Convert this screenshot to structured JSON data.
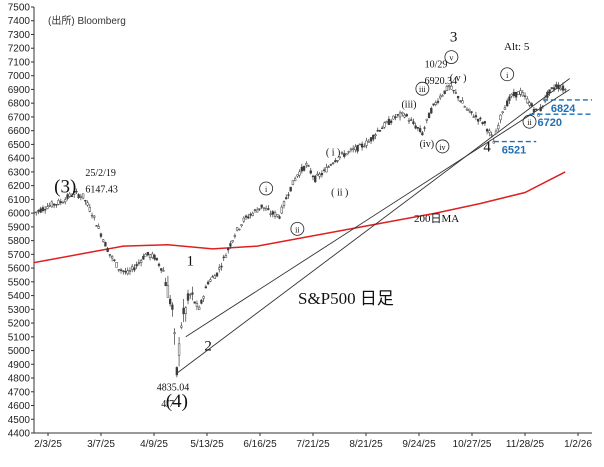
{
  "source_label": "(出所) Bloomberg",
  "title": "S&P500 日足",
  "alt_label": "Alt: 5",
  "ma_label": "200日MA",
  "colors": {
    "candle": "#3a3a3a",
    "ma": "#e02020",
    "trendline": "#333333",
    "support": "#1f6fb5",
    "support_text": "#1f6fb5"
  },
  "chart_data": {
    "type": "candlestick",
    "ylim": [
      4400,
      7500
    ],
    "y_ticks": [
      4400,
      4500,
      4600,
      4700,
      4800,
      4900,
      5000,
      5100,
      5200,
      5300,
      5400,
      5500,
      5600,
      5700,
      5800,
      5900,
      6000,
      6100,
      6200,
      6300,
      6400,
      6500,
      6600,
      6700,
      6800,
      6900,
      7000,
      7100,
      7200,
      7300,
      7400,
      7500
    ],
    "x_tick_labels": [
      "2/3/25",
      "3/7/25",
      "4/9/25",
      "5/13/25",
      "6/16/25",
      "7/21/25",
      "8/21/25",
      "9/24/25",
      "10/27/25",
      "11/28/25",
      "1/2/26"
    ],
    "price_path": [
      [
        0,
        6000
      ],
      [
        6,
        6050
      ],
      [
        12,
        6080
      ],
      [
        18,
        6147
      ],
      [
        22,
        6120
      ],
      [
        26,
        6000
      ],
      [
        30,
        5850
      ],
      [
        34,
        5700
      ],
      [
        38,
        5600
      ],
      [
        42,
        5560
      ],
      [
        46,
        5620
      ],
      [
        50,
        5700
      ],
      [
        54,
        5680
      ],
      [
        58,
        5580
      ],
      [
        62,
        5300
      ],
      [
        64,
        4835
      ],
      [
        66,
        5200
      ],
      [
        70,
        5400
      ],
      [
        74,
        5300
      ],
      [
        78,
        5500
      ],
      [
        82,
        5560
      ],
      [
        86,
        5700
      ],
      [
        90,
        5850
      ],
      [
        94,
        5950
      ],
      [
        98,
        6000
      ],
      [
        102,
        6050
      ],
      [
        106,
        6000
      ],
      [
        110,
        5980
      ],
      [
        114,
        6150
      ],
      [
        118,
        6280
      ],
      [
        122,
        6350
      ],
      [
        126,
        6250
      ],
      [
        130,
        6300
      ],
      [
        134,
        6380
      ],
      [
        138,
        6420
      ],
      [
        142,
        6450
      ],
      [
        146,
        6480
      ],
      [
        150,
        6520
      ],
      [
        154,
        6600
      ],
      [
        158,
        6650
      ],
      [
        162,
        6700
      ],
      [
        166,
        6720
      ],
      [
        170,
        6650
      ],
      [
        174,
        6580
      ],
      [
        178,
        6750
      ],
      [
        182,
        6850
      ],
      [
        186,
        6920
      ],
      [
        190,
        6850
      ],
      [
        194,
        6750
      ],
      [
        198,
        6700
      ],
      [
        202,
        6650
      ],
      [
        206,
        6521
      ],
      [
        210,
        6750
      ],
      [
        214,
        6850
      ],
      [
        218,
        6880
      ],
      [
        222,
        6800
      ],
      [
        226,
        6720
      ],
      [
        230,
        6860
      ],
      [
        234,
        6930
      ],
      [
        238,
        6900
      ]
    ],
    "ma200_path": [
      [
        0,
        5640
      ],
      [
        20,
        5700
      ],
      [
        40,
        5760
      ],
      [
        60,
        5770
      ],
      [
        80,
        5740
      ],
      [
        100,
        5760
      ],
      [
        120,
        5820
      ],
      [
        140,
        5880
      ],
      [
        160,
        5940
      ],
      [
        180,
        6000
      ],
      [
        200,
        6070
      ],
      [
        220,
        6150
      ],
      [
        238,
        6300
      ]
    ],
    "trendlines": [
      {
        "from": [
          64,
          4835
        ],
        "to": [
          240,
          6980
        ]
      },
      {
        "from": [
          68,
          5100
        ],
        "to": [
          240,
          6900
        ]
      }
    ],
    "support_levels": [
      {
        "value": 6824,
        "label": "6824",
        "from_x": 228,
        "to_x": 250
      },
      {
        "value": 6720,
        "label": "6720",
        "from_x": 222,
        "to_x": 250
      },
      {
        "value": 6521,
        "label": "6521",
        "from_x": 206,
        "to_x": 225
      }
    ],
    "wave_labels": [
      {
        "x": 14,
        "y": 6150,
        "text": "(3)",
        "size": "big"
      },
      {
        "x": 70,
        "y": 5620,
        "text": "1",
        "size": "mid"
      },
      {
        "x": 78,
        "y": 5000,
        "text": "2",
        "size": "mid"
      },
      {
        "x": 64,
        "y": 4590,
        "text": "(4)",
        "size": "big"
      },
      {
        "x": 188,
        "y": 7250,
        "text": "3",
        "size": "mid"
      },
      {
        "x": 203,
        "y": 6450,
        "text": "4",
        "size": "mid"
      },
      {
        "x": 104,
        "y": 6154,
        "text": "i",
        "size": "circle"
      },
      {
        "x": 118,
        "y": 5860,
        "text": "ii",
        "size": "circle"
      },
      {
        "x": 174,
        "y": 6880,
        "text": "iii",
        "size": "circle"
      },
      {
        "x": 183,
        "y": 6460,
        "text": "iv",
        "size": "circle"
      },
      {
        "x": 187,
        "y": 7110,
        "text": "v",
        "size": "circle"
      },
      {
        "x": 212,
        "y": 6985,
        "text": "i",
        "size": "circle"
      },
      {
        "x": 222,
        "y": 6640,
        "text": "ii",
        "size": "circle"
      },
      {
        "x": 134,
        "y": 6420,
        "text": "( i )",
        "size": "small"
      },
      {
        "x": 137,
        "y": 6130,
        "text": "( ii )",
        "size": "small"
      },
      {
        "x": 168,
        "y": 6770,
        "text": "(iii)",
        "size": "small"
      },
      {
        "x": 176,
        "y": 6480,
        "text": "(iv)",
        "size": "small"
      },
      {
        "x": 190,
        "y": 6960,
        "text": "( v )",
        "size": "small"
      }
    ],
    "annotations": [
      {
        "x": 23,
        "y": 6270,
        "text": "25/2/19"
      },
      {
        "x": 23,
        "y": 6150,
        "text": "6147.43"
      },
      {
        "x": 175,
        "y": 7060,
        "text": "10/29"
      },
      {
        "x": 175,
        "y": 6940,
        "text": "6920.34"
      },
      {
        "x": 55,
        "y": 4710,
        "text": "4835.04"
      },
      {
        "x": 57,
        "y": 4590,
        "text": "4/7"
      }
    ]
  }
}
